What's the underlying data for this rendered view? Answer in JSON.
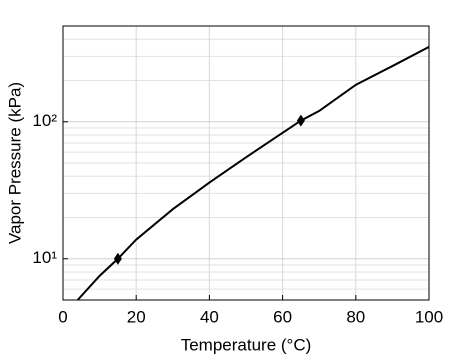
{
  "chart_data": {
    "type": "line",
    "xlabel": "Temperature (°C)",
    "ylabel": "Vapor Pressure (kPa)",
    "x": [
      4,
      10,
      15,
      20,
      30,
      40,
      50,
      60,
      65,
      70,
      80,
      90,
      100
    ],
    "series": [
      {
        "color": "#000000",
        "values": [
          5,
          7.5,
          10,
          13.8,
          23,
          36,
          55,
          83,
          102,
          120,
          186,
          255,
          352
        ]
      }
    ],
    "markers": {
      "x": [
        15,
        65
      ],
      "values": [
        10,
        102
      ],
      "color": "#000000"
    },
    "xlim": [
      0,
      100
    ],
    "xticks": [
      0,
      20,
      40,
      60,
      80,
      100
    ],
    "ylim": [
      5,
      500
    ],
    "log_y": true,
    "yticks": [
      {
        "value": 10,
        "label": "10¹"
      },
      {
        "value": 100,
        "label": "10²"
      }
    ],
    "minor_yticks": [
      5,
      6,
      7,
      8,
      9,
      20,
      30,
      40,
      50,
      60,
      70,
      80,
      90,
      200,
      300,
      400,
      500
    ],
    "grid": true
  }
}
